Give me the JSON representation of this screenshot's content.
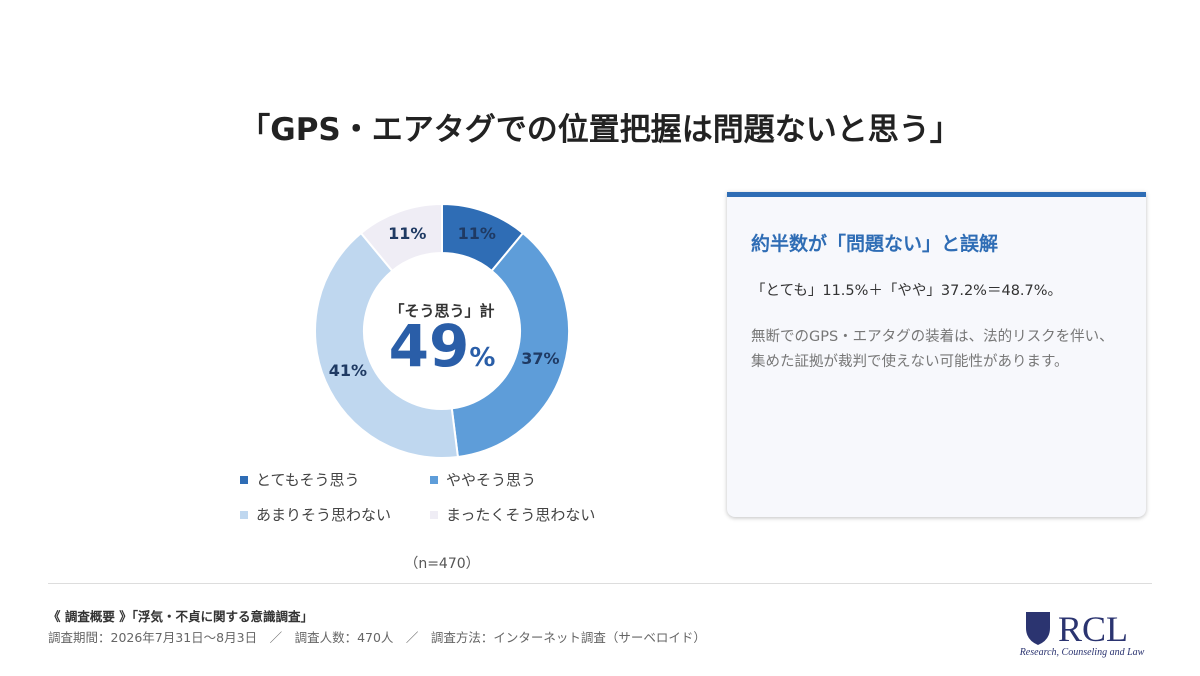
{
  "chart_data": {
    "type": "donut",
    "title": "「GPS・エアタグでの位置把握は問題ないと思う」",
    "categories": [
      "とてもそう思う",
      "ややそう思う",
      "あまりそう思わない",
      "まったくそう思わない"
    ],
    "values": [
      11,
      37,
      41,
      11
    ],
    "value_labels": [
      "11%",
      "37%",
      "41%",
      "11%"
    ],
    "colors": [
      "#2f6db5",
      "#5e9dd9",
      "#bfd7ef",
      "#efedf5"
    ],
    "center_label": "「そう思う」計",
    "center_value": "49",
    "center_unit": "%",
    "note": "（n=470）"
  },
  "card": {
    "title": "約半数が「問題ない」と誤解",
    "line": "「とても」11.5%＋「やや」37.2%＝48.7%。",
    "body": "無断でのGPS・エアタグの装着は、法的リスクを伴い、集めた証拠が裁判で使えない可能性があります。"
  },
  "footer": {
    "survey": "《 調査概要 》「浮気・不貞に関する意識調査」",
    "details": "調査期間：2026年7月31日～8月3日　／　調査人数：470人　／　調査方法：インターネット調査（サーベロイド）"
  },
  "logo": {
    "name": "RCL",
    "tagline": "Research, Counseling and Law"
  }
}
